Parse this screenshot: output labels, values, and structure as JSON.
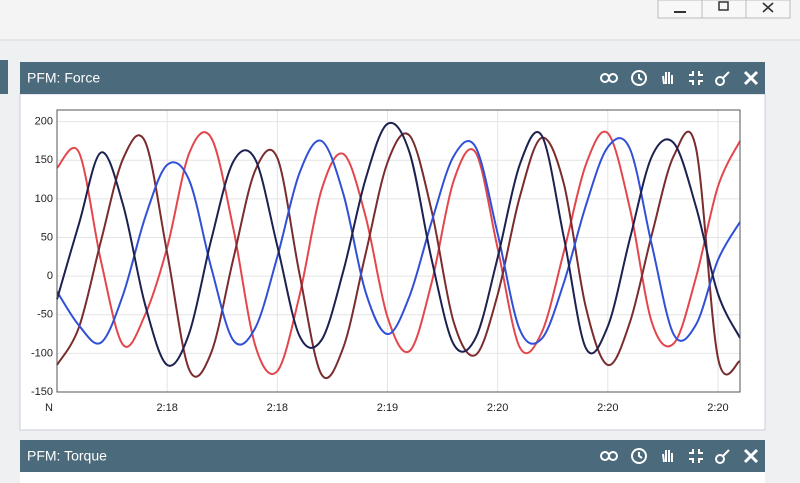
{
  "panels": [
    {
      "title": "PFM: Force"
    },
    {
      "title": "PFM: Torque"
    }
  ],
  "chart_data": {
    "type": "line",
    "categories": [
      "N",
      null,
      null,
      null,
      null,
      "2:18",
      null,
      null,
      null,
      null,
      "2:18",
      null,
      null,
      null,
      null,
      "2:19",
      null,
      null,
      null,
      null,
      "2:20",
      null,
      null,
      null,
      null,
      "2:20",
      null,
      null,
      null,
      null,
      "2:20",
      null
    ],
    "series": [
      {
        "color": "#e3474d",
        "values": [
          140,
          160,
          19,
          -89,
          -50,
          37,
          159,
          179,
          62,
          -90,
          -123,
          -26,
          111,
          158,
          78,
          -53,
          -97,
          -9,
          123,
          160,
          36,
          -92,
          -73,
          31,
          144,
          185,
          88,
          -60,
          -87,
          -2,
          116,
          175
        ]
      },
      {
        "color": "#7a2c2e",
        "values": [
          -115,
          -66,
          46,
          152,
          174,
          30,
          -121,
          -99,
          22,
          137,
          153,
          4,
          -127,
          -92,
          28,
          147,
          182,
          85,
          -59,
          -102,
          -24,
          102,
          179,
          120,
          -40,
          -115,
          -60,
          54,
          156,
          166,
          -106,
          -110
        ]
      },
      {
        "color": "#3050d8",
        "values": [
          -20,
          -64,
          -86,
          -24,
          76,
          144,
          124,
          11,
          -83,
          -67,
          25,
          133,
          175,
          106,
          -20,
          -75,
          -26,
          70,
          155,
          167,
          55,
          -69,
          -81,
          -9,
          91,
          167,
          165,
          40,
          -76,
          -63,
          21,
          70
        ]
      },
      {
        "color": "#1d2150",
        "values": [
          -30,
          68,
          160,
          92,
          -37,
          -115,
          -74,
          47,
          148,
          151,
          39,
          -77,
          -83,
          7,
          125,
          197,
          160,
          22,
          -88,
          -80,
          24,
          144,
          182,
          51,
          -93,
          -65,
          48,
          155,
          172,
          90,
          -23,
          -80
        ]
      }
    ],
    "ylim": [
      -150,
      215
    ],
    "yticks": [
      -150,
      -100,
      -50,
      0,
      50,
      100,
      150,
      200
    ],
    "grid": true
  }
}
